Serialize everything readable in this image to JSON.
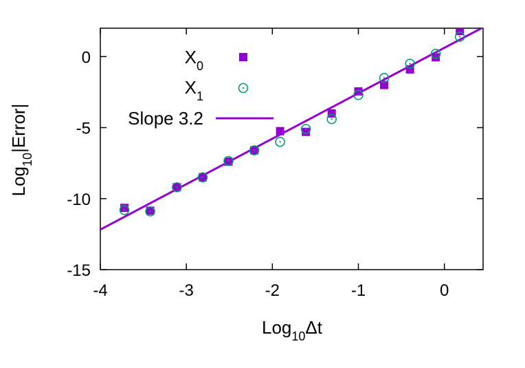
{
  "chart_data": {
    "type": "scatter",
    "title": "",
    "xlabel": {
      "base": "Log",
      "sub": "10",
      "rest": "Δt"
    },
    "ylabel": {
      "base": "Log",
      "sub": "10",
      "rest": "|Error|"
    },
    "xlim": [
      -4,
      0.45
    ],
    "ylim": [
      -15,
      2
    ],
    "xticks": [
      -4,
      -3,
      -2,
      -1,
      0
    ],
    "yticks": [
      -15,
      -10,
      -5,
      0
    ],
    "grid": false,
    "legend_position": "top-left",
    "series": [
      {
        "name_base": "X",
        "name_sub": "0",
        "marker": "filled-square",
        "color": "#9400d3",
        "points": [
          [
            -3.72,
            -10.65
          ],
          [
            -3.42,
            -10.85
          ],
          [
            -3.11,
            -9.2
          ],
          [
            -2.81,
            -8.5
          ],
          [
            -2.51,
            -7.4
          ],
          [
            -2.21,
            -6.6
          ],
          [
            -1.91,
            -5.25
          ],
          [
            -1.61,
            -5.3
          ],
          [
            -1.31,
            -4.0
          ],
          [
            -1.0,
            -2.45
          ],
          [
            -0.7,
            -2.0
          ],
          [
            -0.4,
            -0.9
          ],
          [
            -0.1,
            -0.05
          ],
          [
            0.18,
            1.8
          ]
        ]
      },
      {
        "name_base": "X",
        "name_sub": "1",
        "marker": "circle-dot",
        "color": "#009e73",
        "points": [
          [
            -3.72,
            -10.8
          ],
          [
            -3.42,
            -10.9
          ],
          [
            -3.11,
            -9.2
          ],
          [
            -2.81,
            -8.5
          ],
          [
            -2.51,
            -7.35
          ],
          [
            -2.21,
            -6.6
          ],
          [
            -1.91,
            -6.0
          ],
          [
            -1.61,
            -5.1
          ],
          [
            -1.31,
            -4.4
          ],
          [
            -1.0,
            -2.7
          ],
          [
            -0.7,
            -1.5
          ],
          [
            -0.4,
            -0.5
          ],
          [
            -0.1,
            0.2
          ],
          [
            0.18,
            1.4
          ]
        ]
      }
    ],
    "fit_line": {
      "name": "Slope 3.2",
      "color": "#9400d3",
      "slope": 3.2,
      "intercept": 0.62,
      "x_range": [
        -4,
        0.45
      ]
    }
  }
}
